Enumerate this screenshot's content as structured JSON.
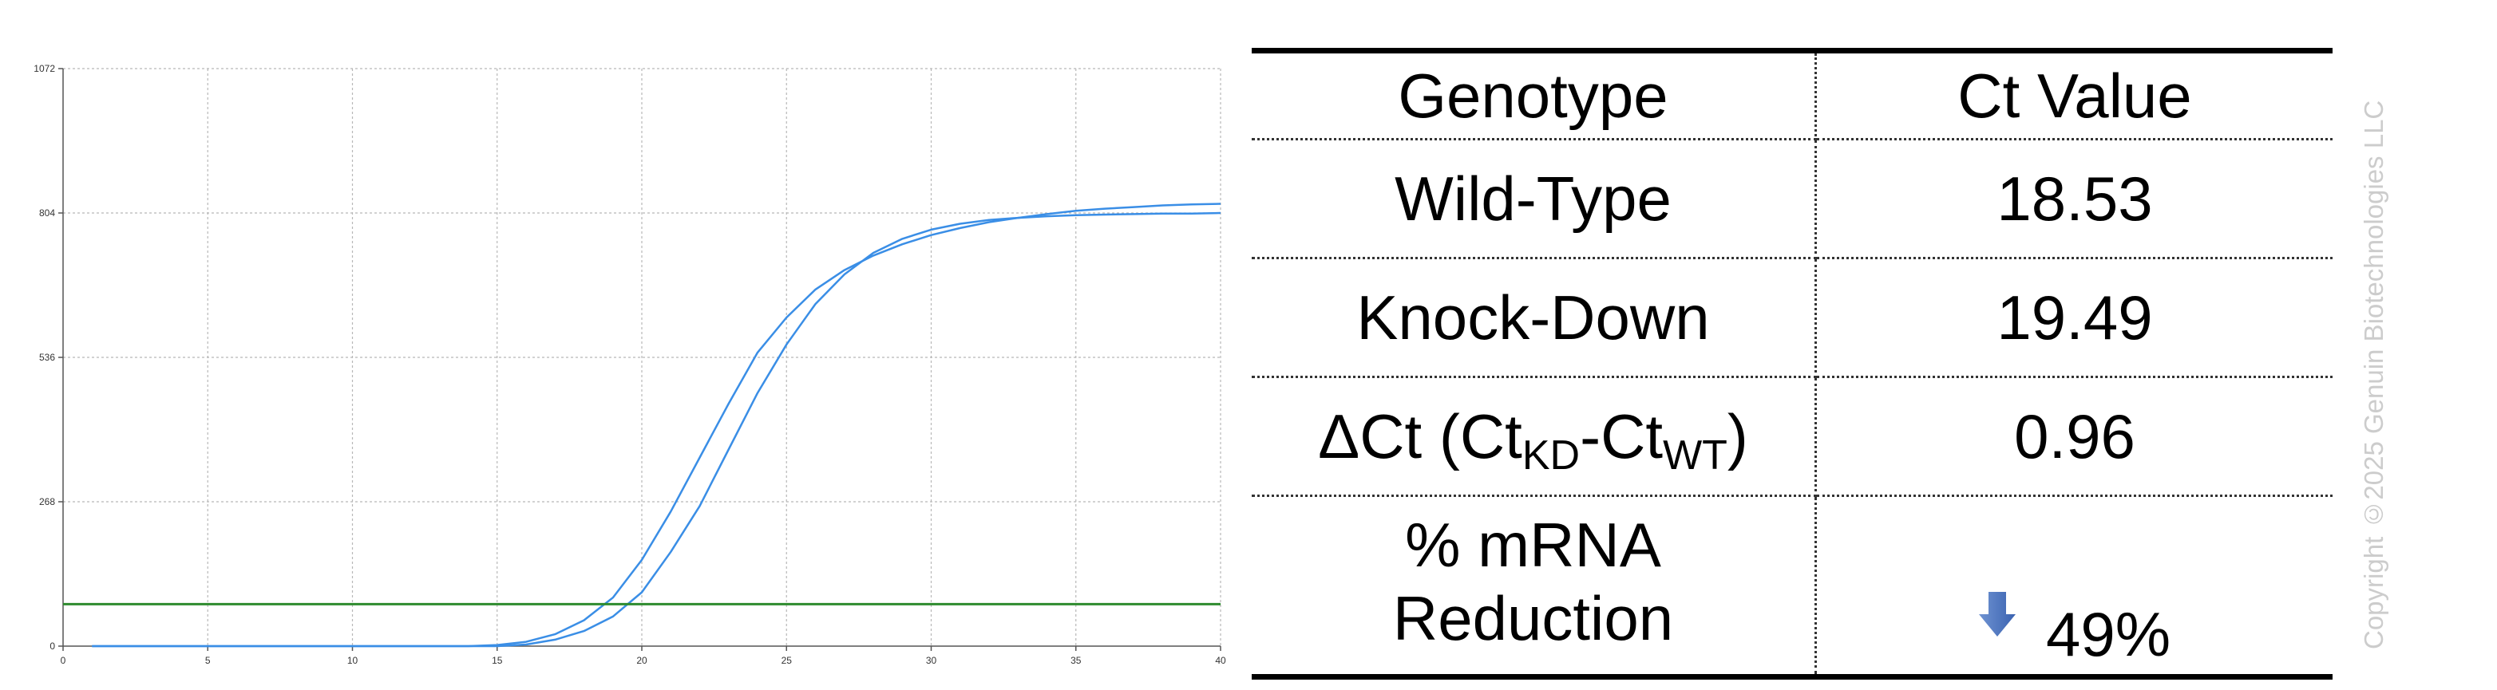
{
  "chart_data": [
    {
      "type": "line",
      "title": "",
      "xlabel": "",
      "ylabel": "",
      "xlim": [
        0,
        40
      ],
      "ylim": [
        0,
        1072
      ],
      "x_ticks": [
        0,
        5,
        10,
        15,
        20,
        25,
        30,
        35,
        40
      ],
      "y_ticks": [
        0,
        268,
        536,
        804,
        1072
      ],
      "grid": true,
      "threshold": 78,
      "colors": {
        "series": "#3a8ee6",
        "threshold": "#2e8b2e",
        "grid": "#b8b8b8"
      },
      "series": [
        {
          "x": [
            1,
            10,
            14,
            15,
            16,
            17,
            18,
            19,
            20,
            21,
            22,
            23,
            24,
            25,
            26,
            27,
            28,
            29,
            30,
            31,
            32,
            33,
            34,
            35,
            36,
            37,
            38,
            39,
            40
          ],
          "values": [
            0,
            0,
            0,
            2,
            8,
            22,
            48,
            90,
            160,
            250,
            350,
            450,
            545,
            610,
            662,
            698,
            725,
            746,
            763,
            776,
            787,
            795,
            802,
            808,
            812,
            815,
            818,
            820,
            821
          ]
        },
        {
          "x": [
            1,
            10,
            15,
            16,
            17,
            18,
            19,
            20,
            21,
            22,
            23,
            24,
            25,
            26,
            27,
            28,
            29,
            30,
            31,
            32,
            33,
            34,
            35,
            36,
            37,
            38,
            39,
            40
          ],
          "values": [
            0,
            0,
            0,
            3,
            12,
            28,
            55,
            100,
            175,
            260,
            365,
            470,
            560,
            635,
            690,
            730,
            756,
            773,
            784,
            791,
            795,
            798,
            800,
            801,
            802,
            803,
            803,
            804
          ]
        }
      ]
    },
    {
      "type": "table",
      "columns": [
        "Genotype",
        "Ct Value"
      ],
      "rows": [
        {
          "label": "Wild-Type",
          "value": "18.53"
        },
        {
          "label": "Knock-Down",
          "value": "19.49"
        },
        {
          "label_parts": [
            "ΔCt (Ct",
            "KD",
            "-Ct",
            "WT",
            ")"
          ],
          "value": "0.96"
        },
        {
          "label_lines": [
            "% mRNA",
            "Reduction"
          ],
          "value": "49%",
          "value_icon": "down-arrow-icon",
          "icon_color": "#3a62b0"
        }
      ]
    }
  ],
  "watermark": "Copyright ©2025 Genuin Biotechnologies LLC"
}
